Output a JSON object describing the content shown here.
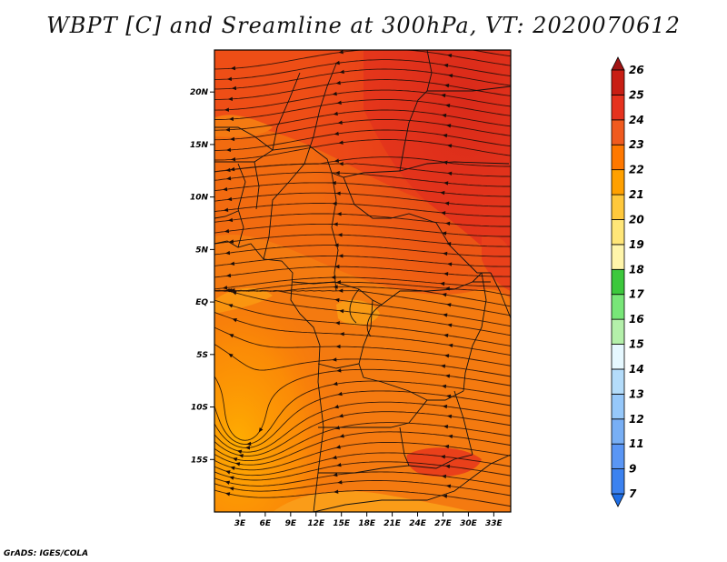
{
  "title": "WBPT [C] and Sreamline at 300hPa, VT: 2020070612",
  "credit": "GrADS: IGES/COLA",
  "map": {
    "lon_range": [
      0,
      35
    ],
    "lat_range": [
      -20,
      24
    ],
    "lat_ticks": [
      {
        "value": 20,
        "label": "20N"
      },
      {
        "value": 15,
        "label": "15N"
      },
      {
        "value": 10,
        "label": "10N"
      },
      {
        "value": 5,
        "label": "5N"
      },
      {
        "value": 0,
        "label": "EQ"
      },
      {
        "value": -5,
        "label": "5S"
      },
      {
        "value": -10,
        "label": "10S"
      },
      {
        "value": -15,
        "label": "15S"
      }
    ],
    "lon_ticks": [
      {
        "value": 3,
        "label": "3E"
      },
      {
        "value": 6,
        "label": "6E"
      },
      {
        "value": 9,
        "label": "9E"
      },
      {
        "value": 12,
        "label": "12E"
      },
      {
        "value": 15,
        "label": "15E"
      },
      {
        "value": 18,
        "label": "18E"
      },
      {
        "value": 21,
        "label": "21E"
      },
      {
        "value": 24,
        "label": "24E"
      },
      {
        "value": 27,
        "label": "27E"
      },
      {
        "value": 30,
        "label": "30E"
      },
      {
        "value": 33,
        "label": "33E"
      }
    ]
  },
  "colorbar": {
    "levels": [
      "7",
      "9",
      "11",
      "12",
      "13",
      "14",
      "15",
      "16",
      "17",
      "18",
      "19",
      "20",
      "21",
      "22",
      "23",
      "24",
      "25",
      "26"
    ],
    "colors": [
      "#1e6ee6",
      "#3c82f0",
      "#5a96f5",
      "#78aff5",
      "#96c8fa",
      "#b4dcfa",
      "#e6f8ff",
      "#b4f0aa",
      "#78e678",
      "#3cc83c",
      "#fff5aa",
      "#ffe678",
      "#ffc83c",
      "#ffa000",
      "#ff7800",
      "#f05a1e",
      "#e6321e",
      "#c81e14",
      "#a01414"
    ]
  }
}
